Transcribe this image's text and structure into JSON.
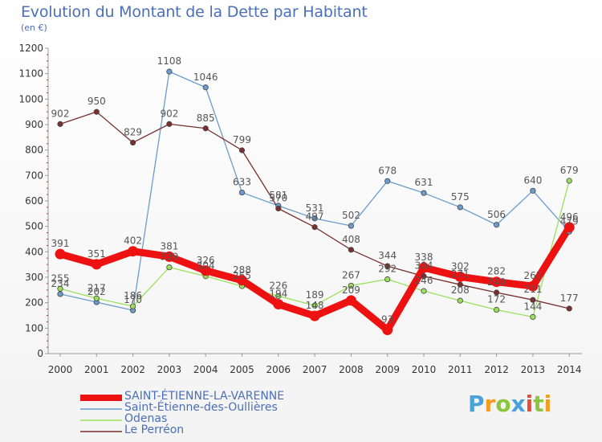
{
  "header": {
    "title": "Evolution du Montant de la Dette par Habitant",
    "subtitle": "(en €)"
  },
  "brand": {
    "logo_text": "Proxiti",
    "colors": [
      "#4aa3d8",
      "#f39c1f",
      "#8cc63f",
      "#4aa3d8",
      "#e84d3c",
      "#8cc63f",
      "#f39c1f"
    ]
  },
  "chart_data": {
    "type": "line",
    "title": "Evolution du Montant de la Dette par Habitant",
    "subtitle": "(en €)",
    "xlabel": "",
    "ylabel": "",
    "x": [
      "2000",
      "2001",
      "2002",
      "2003",
      "2004",
      "2005",
      "2006",
      "2007",
      "2008",
      "2009",
      "2010",
      "2011",
      "2012",
      "2013",
      "2014"
    ],
    "ylim": [
      0,
      1200
    ],
    "yticks": [
      "0",
      "100",
      "200",
      "300",
      "400",
      "500",
      "600",
      "700",
      "800",
      "900",
      "1000",
      "1100",
      "1200"
    ],
    "grid": false,
    "legend_position": "bottom-left",
    "series": [
      {
        "name": "Saint-Étienne-des-Oullières",
        "color": "#6b9ccd",
        "values": [
          234,
          202,
          170,
          1108,
          1046,
          633,
          581,
          531,
          502,
          678,
          631,
          575,
          506,
          640,
          479
        ],
        "labels": [
          "234",
          "202",
          "170",
          "1108",
          "1046",
          "633",
          "581",
          "531",
          "502",
          "678",
          "631",
          "575",
          "506",
          "640",
          "479"
        ]
      },
      {
        "name": "Odenas",
        "color": "#9be05c",
        "values": [
          255,
          217,
          186,
          339,
          304,
          265,
          226,
          189,
          267,
          292,
          246,
          208,
          172,
          144,
          679
        ],
        "labels": [
          "255",
          "217",
          "186",
          "339",
          "304",
          "265",
          "226",
          "189",
          "267",
          "292",
          "246",
          "208",
          "172",
          "144",
          "679"
        ]
      },
      {
        "name": "Le Perréon",
        "color": "#7a2e2e",
        "values": [
          902,
          950,
          829,
          902,
          885,
          799,
          570,
          497,
          408,
          344,
          304,
          271,
          240,
          211,
          177
        ],
        "labels": [
          "902",
          "950",
          "829",
          "902",
          "885",
          "799",
          "570",
          "497",
          "408",
          "344",
          "304",
          "271",
          "240",
          "211",
          "177"
        ]
      },
      {
        "name": "SAINT-ÉTIENNE-LA-VARENNE",
        "color": "#ee1111",
        "highlight": true,
        "values": [
          391,
          351,
          402,
          381,
          326,
          288,
          194,
          148,
          209,
          93,
          338,
          302,
          282,
          265,
          496
        ],
        "labels": [
          "391",
          "351",
          "402",
          "381",
          "326",
          "288",
          "194",
          "148",
          "209",
          "93",
          "338",
          "302",
          "282",
          "265",
          "496"
        ]
      }
    ]
  },
  "legend": {
    "items": [
      {
        "label": "SAINT-ÉTIENNE-LA-VARENNE",
        "color": "#ee1111",
        "highlight": true
      },
      {
        "label": "Saint-Étienne-des-Oullières",
        "color": "#6b9ccd"
      },
      {
        "label": "Odenas",
        "color": "#9be05c"
      },
      {
        "label": "Le Perréon",
        "color": "#7a2e2e"
      }
    ]
  }
}
